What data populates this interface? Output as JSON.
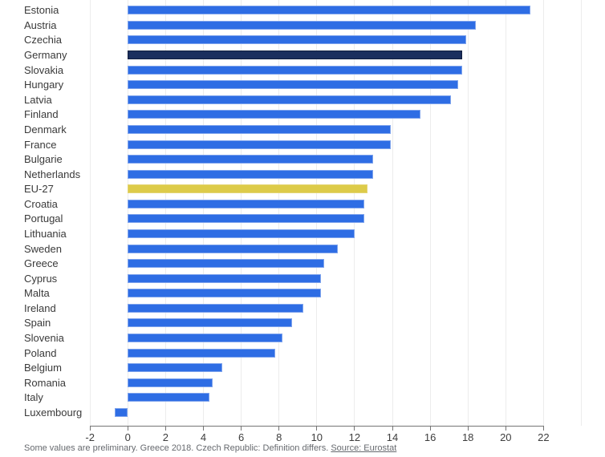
{
  "chart_data": {
    "type": "bar",
    "orientation": "horizontal",
    "title": "",
    "xlabel": "",
    "ylabel": "",
    "xlim": [
      -2,
      24
    ],
    "x_ticks": [
      -2,
      0,
      2,
      4,
      6,
      8,
      10,
      12,
      14,
      16,
      18,
      20,
      22
    ],
    "gridline_values": [
      -2,
      0,
      2,
      4,
      6,
      8,
      10,
      12,
      14,
      16,
      18,
      20,
      22,
      24
    ],
    "grid": true,
    "legend": "none",
    "categories": [
      "Estonia",
      "Austria",
      "Czechia",
      "Germany",
      "Slovakia",
      "Hungary",
      "Latvia",
      "Finland",
      "Denmark",
      "France",
      "Bulgarie",
      "Netherlands",
      "EU-27",
      "Croatia",
      "Portugal",
      "Lithuania",
      "Sweden",
      "Greece",
      "Cyprus",
      "Malta",
      "Ireland",
      "Spain",
      "Slovenia",
      "Poland",
      "Belgium",
      "Romania",
      "Italy",
      "Luxembourg"
    ],
    "values": [
      21.3,
      18.4,
      17.9,
      17.7,
      17.7,
      17.5,
      17.1,
      15.5,
      13.9,
      13.9,
      13.0,
      13.0,
      12.7,
      12.5,
      12.5,
      12.0,
      11.1,
      10.4,
      10.2,
      10.2,
      9.3,
      8.7,
      8.2,
      7.8,
      5.0,
      4.5,
      4.3,
      -0.7
    ],
    "bar_roles": [
      "default",
      "default",
      "default",
      "highlight-dark",
      "default",
      "default",
      "default",
      "default",
      "default",
      "default",
      "default",
      "default",
      "highlight-yellow",
      "default",
      "default",
      "default",
      "default",
      "default",
      "default",
      "default",
      "default",
      "default",
      "default",
      "default",
      "default",
      "default",
      "default",
      "default"
    ]
  },
  "colors": {
    "bar_default": "#2e6de4",
    "bar_default_border": "#7ea3ec",
    "bar_highlight_dark": "#1b2f5e",
    "bar_highlight_dark_border": "#0f1d3d",
    "bar_highlight_yellow": "#ddcb49",
    "bar_highlight_yellow_border": "#e3d472",
    "gridline": "#ececec",
    "axis": "#757575",
    "category_text": "#3a3a3a",
    "tick_text": "#3d3d3d",
    "footer_text": "#66696e"
  },
  "footer": {
    "note": "Some values are preliminary. Greece 2018. Czech Republic: Definition differs. ",
    "source_link": "Source: Eurostat"
  }
}
